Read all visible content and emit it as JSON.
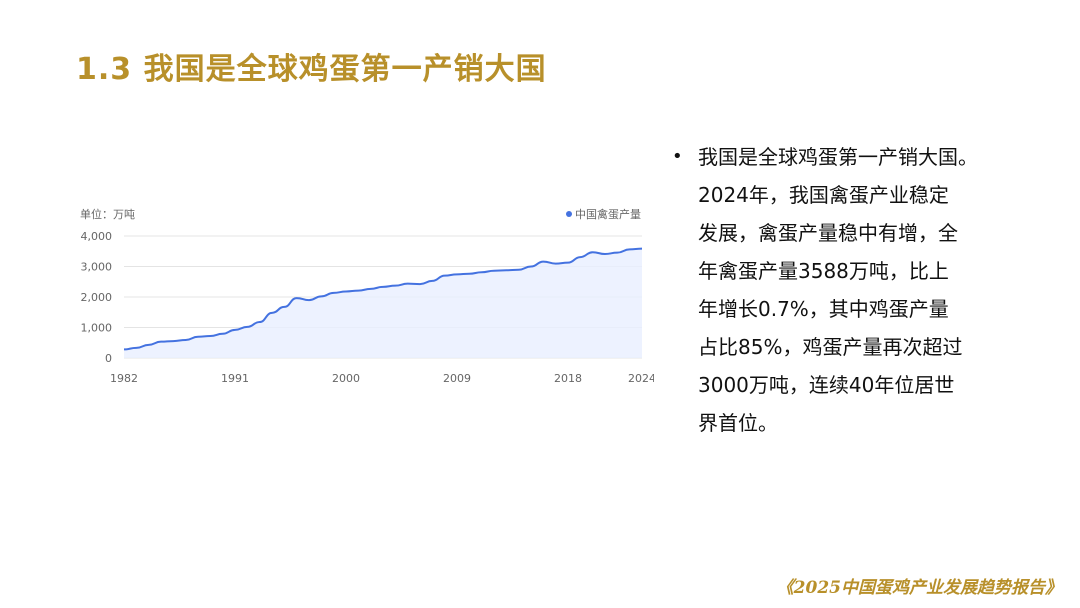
{
  "slide": {
    "title": "1.3 我国是全球鸡蛋第一产销大国",
    "bullet_text": "我国是全球鸡蛋第一产销大国。\n2024年，我国禽蛋产业稳定\n发展，禽蛋产量稳中有增，全\n年禽蛋产量3588万吨，比上\n年增长0.7%，其中鸡蛋产量\n占比85%，鸡蛋产量再次超过\n3000万吨，连续40年位居世\n界首位。",
    "footer": "《2025中国蛋鸡产业发展趋势报告》"
  },
  "chart_data": {
    "type": "area",
    "unit_label": "单位：万吨",
    "legend": "中国禽蛋产量",
    "legend_position": "top-right",
    "colors": {
      "line": "#4472e0",
      "fill": "#e9efff",
      "grid": "#e4e4e4",
      "axis_text": "#666666"
    },
    "ylim": [
      0,
      4000
    ],
    "y_ticks": [
      0,
      1000,
      2000,
      3000,
      4000
    ],
    "y_tick_labels": [
      "0",
      "1,000",
      "2,000",
      "3,000",
      "4,000"
    ],
    "xlim": [
      1982,
      2024
    ],
    "x_ticks": [
      1982,
      1991,
      2000,
      2009,
      2018,
      2024
    ],
    "x_tick_labels": [
      "1982",
      "1991",
      "2000",
      "2009",
      "2018",
      "2024"
    ],
    "grid": true,
    "x": [
      1982,
      1983,
      1984,
      1985,
      1986,
      1987,
      1988,
      1989,
      1990,
      1991,
      1992,
      1993,
      1994,
      1995,
      1996,
      1997,
      1998,
      1999,
      2000,
      2001,
      2002,
      2003,
      2004,
      2005,
      2006,
      2007,
      2008,
      2009,
      2010,
      2011,
      2012,
      2013,
      2014,
      2015,
      2016,
      2017,
      2018,
      2019,
      2020,
      2021,
      2022,
      2023,
      2024
    ],
    "series": [
      {
        "name": "中国禽蛋产量",
        "values": [
          281,
          332,
          432,
          535,
          555,
          590,
          695,
          720,
          795,
          922,
          1020,
          1180,
          1479,
          1677,
          1965,
          1897,
          2021,
          2135,
          2182,
          2210,
          2266,
          2333,
          2371,
          2438,
          2424,
          2529,
          2702,
          2742,
          2763,
          2811,
          2861,
          2876,
          2894,
          2999,
          3161,
          3096,
          3128,
          3309,
          3468,
          3409,
          3456,
          3563,
          3588
        ]
      }
    ]
  }
}
